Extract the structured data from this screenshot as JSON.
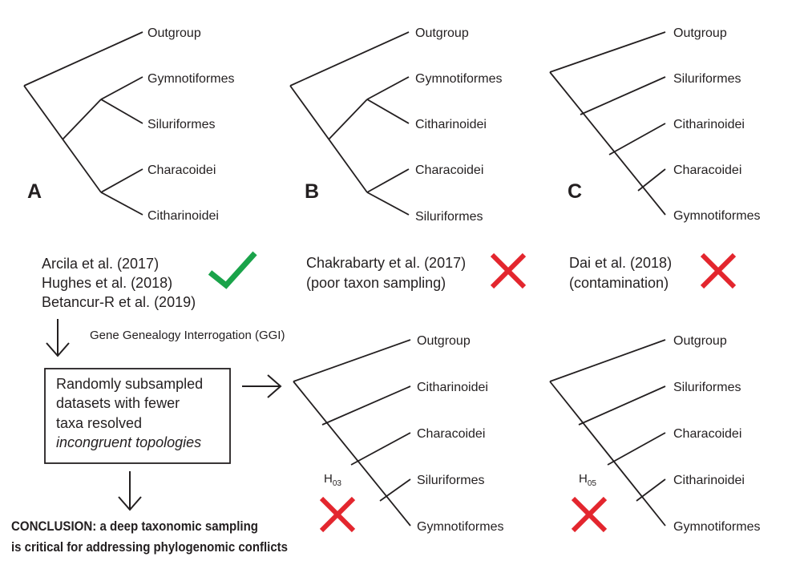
{
  "panels": {
    "A": {
      "letter": "A",
      "taxa": [
        "Outgroup",
        "Gymnotiformes",
        "Siluriformes",
        "Characoidei",
        "Citharinoidei"
      ]
    },
    "B": {
      "letter": "B",
      "taxa": [
        "Outgroup",
        "Gymnotiformes",
        "Citharinoidei",
        "Characoidei",
        "Siluriformes"
      ]
    },
    "C": {
      "letter": "C",
      "taxa": [
        "Outgroup",
        "Siluriformes",
        "Citharinoidei",
        "Characoidei",
        "Gymnotiformes"
      ]
    }
  },
  "citations": {
    "a": [
      "Arcila et al. (2017)",
      "Hughes et al. (2018)",
      "Betancur-R et al. (2019)"
    ],
    "b": [
      "Chakrabarty et al. (2017)",
      "(poor taxon sampling)"
    ],
    "c": [
      "Dai et al. (2018)",
      "(contamination)"
    ]
  },
  "verdicts": {
    "a": "check-icon",
    "b": "cross-icon",
    "c": "cross-icon",
    "h03": "cross-icon",
    "h05": "cross-icon"
  },
  "colors": {
    "check": "#1aa34a",
    "cross": "#e3262e",
    "ink": "#231f20"
  },
  "ggi_label": "Gene Genealogy Interrogation (GGI)",
  "box": {
    "lines": [
      "Randomly subsampled",
      "datasets with fewer",
      "taxa resolved"
    ],
    "italic": "incongruent topologies"
  },
  "conclusion": [
    "CONCLUSION: a deep taxonomic sampling",
    "is critical for addressing phylogenomic conflicts"
  ],
  "hypotheses": {
    "h03": {
      "label": "H",
      "sub": "03",
      "taxa": [
        "Outgroup",
        "Citharinoidei",
        "Characoidei",
        "Siluriformes",
        "Gymnotiformes"
      ]
    },
    "h05": {
      "label": "H",
      "sub": "05",
      "taxa": [
        "Outgroup",
        "Siluriformes",
        "Characoidei",
        "Citharinoidei",
        "Gymnotiformes"
      ]
    }
  }
}
